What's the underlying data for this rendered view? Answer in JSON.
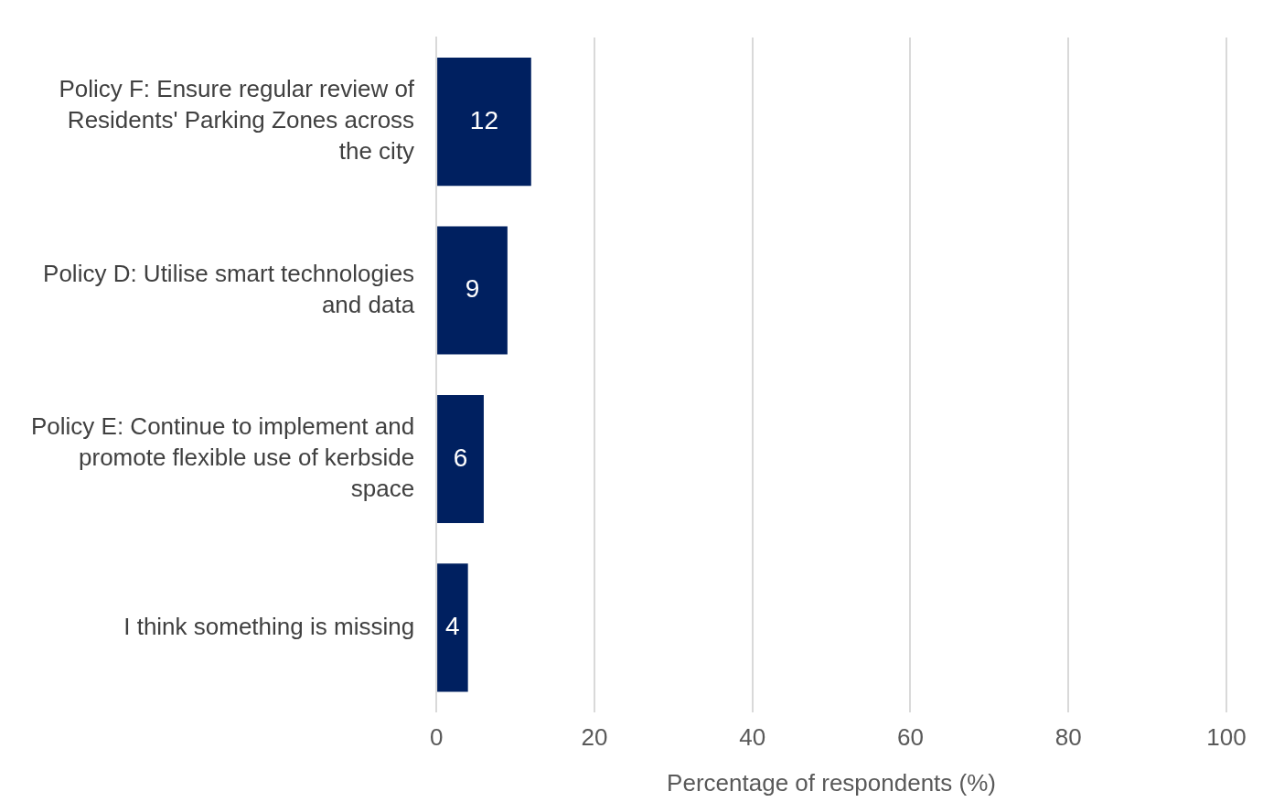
{
  "chart_data": {
    "type": "bar",
    "orientation": "horizontal",
    "xlabel": "Percentage of respondents (%)",
    "categories": [
      "Policy F: Ensure regular review of Residents' Parking Zones across the city",
      "Policy D: Utilise smart technologies and data",
      "Policy E: Continue to implement and promote flexible use of kerbside space",
      "I think something is missing"
    ],
    "values": [
      12,
      9,
      6,
      4
    ],
    "color": "#002060",
    "data_labels": true,
    "xlim": [
      0,
      100
    ],
    "xticks": [
      0,
      20,
      40,
      60,
      80,
      100
    ],
    "grid": "x",
    "legend": false
  }
}
